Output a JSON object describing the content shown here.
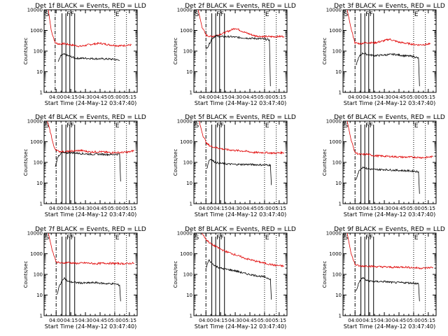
{
  "figure": {
    "y_tick_labels": [
      "1",
      "10",
      "100",
      "1000",
      "10000"
    ],
    "x_tick_labels": [
      "04:00",
      "04:15",
      "04:30",
      "04:45",
      "05:00",
      "05:15"
    ],
    "ylabel": "Counts/sec",
    "xlabel": "Start Time (24-May-12 03:47:40)"
  },
  "chart_data": [
    {
      "type": "line",
      "title": "Det 1f BLACK = Events, RED = LLD",
      "xlabel": "Start Time (24-May-12 03:47:40)",
      "ylabel": "Counts/sec",
      "y_scale": "log",
      "ylim": [
        1,
        10000
      ],
      "xlim": [
        "03:47:40",
        "05:23:00"
      ],
      "x_ticks": [
        "04:00",
        "04:15",
        "04:30",
        "04:45",
        "05:00",
        "05:15"
      ],
      "markers": [
        {
          "label": "S",
          "x": "03:48"
        },
        {
          "label": "F",
          "x": "04:10"
        },
        {
          "label": "F",
          "x": "04:14"
        },
        {
          "label": "E",
          "x": "05:00"
        }
      ],
      "dashdot_lines": [
        "03:59"
      ],
      "solid_lines": [
        "04:06",
        "04:10",
        "04:14",
        "04:19"
      ],
      "dotted_lines": [
        "05:00",
        "05:12"
      ],
      "series": [
        {
          "color": "#e00000",
          "x": [
            "03:52",
            "03:55",
            "03:59",
            "04:03",
            "04:08",
            "04:15",
            "04:25",
            "04:35",
            "04:45",
            "04:55",
            "05:05",
            "05:17"
          ],
          "values": [
            10000,
            1000,
            250,
            220,
            230,
            200,
            170,
            210,
            240,
            200,
            180,
            200
          ]
        },
        {
          "color": "#000000",
          "x": [
            "04:02",
            "04:05",
            "04:08",
            "04:12",
            "04:20",
            "04:30",
            "04:40",
            "04:50",
            "05:00",
            "05:05"
          ],
          "values": [
            30,
            60,
            70,
            60,
            45,
            45,
            43,
            42,
            40,
            35
          ]
        }
      ]
    },
    {
      "type": "line",
      "title": "Det 2f BLACK = Events, RED = LLD",
      "xlabel": "Start Time (24-May-12 03:47:40)",
      "ylabel": "Counts/sec",
      "y_scale": "log",
      "ylim": [
        1,
        10000
      ],
      "xlim": [
        "03:47:40",
        "05:23:00"
      ],
      "x_ticks": [
        "04:00",
        "04:15",
        "04:30",
        "04:45",
        "05:00",
        "05:15"
      ],
      "markers": [
        {
          "label": "S",
          "x": "03:48"
        },
        {
          "label": "F",
          "x": "04:10"
        },
        {
          "label": "F",
          "x": "04:14"
        },
        {
          "label": "E",
          "x": "05:00"
        }
      ],
      "dashdot_lines": [
        "04:00"
      ],
      "solid_lines": [
        "04:06",
        "04:10",
        "04:14",
        "04:19"
      ],
      "dotted_lines": [
        "05:00",
        "05:12"
      ],
      "series": [
        {
          "color": "#e00000",
          "x": [
            "03:52",
            "03:56",
            "04:00",
            "04:05",
            "04:12",
            "04:20",
            "04:30",
            "04:40",
            "04:50",
            "05:00",
            "05:10",
            "05:20"
          ],
          "values": [
            10000,
            1500,
            600,
            500,
            600,
            800,
            1300,
            800,
            550,
            500,
            500,
            520
          ]
        },
        {
          "color": "#000000",
          "x": [
            "04:00",
            "04:03",
            "04:06",
            "04:10",
            "04:15",
            "04:25",
            "04:35",
            "04:45",
            "04:55",
            "05:00",
            "05:05",
            "05:06"
          ],
          "values": [
            120,
            200,
            400,
            550,
            500,
            500,
            450,
            420,
            400,
            380,
            350,
            2
          ]
        }
      ]
    },
    {
      "type": "line",
      "title": "Det 3f BLACK = Events, RED = LLD",
      "xlabel": "Start Time (24-May-12 03:47:40)",
      "ylabel": "Counts/sec",
      "y_scale": "log",
      "ylim": [
        1,
        10000
      ],
      "xlim": [
        "03:47:40",
        "05:23:00"
      ],
      "x_ticks": [
        "04:00",
        "04:15",
        "04:30",
        "04:45",
        "05:00",
        "05:15"
      ],
      "markers": [
        {
          "label": "S",
          "x": "03:48"
        },
        {
          "label": "F",
          "x": "04:10"
        },
        {
          "label": "F",
          "x": "04:14"
        },
        {
          "label": "E",
          "x": "05:00"
        }
      ],
      "dashdot_lines": [
        "04:00"
      ],
      "solid_lines": [
        "04:06",
        "04:10",
        "04:14",
        "04:19"
      ],
      "dotted_lines": [
        "05:00",
        "05:12"
      ],
      "series": [
        {
          "color": "#e00000",
          "x": [
            "03:52",
            "03:56",
            "04:00",
            "04:05",
            "04:12",
            "04:20",
            "04:30",
            "04:35",
            "04:45",
            "04:55",
            "05:05",
            "05:17"
          ],
          "values": [
            10000,
            1200,
            250,
            230,
            260,
            250,
            320,
            380,
            270,
            230,
            200,
            220
          ]
        },
        {
          "color": "#000000",
          "x": [
            "04:01",
            "04:03",
            "04:05",
            "04:08",
            "04:12",
            "04:20",
            "04:30",
            "04:40",
            "04:50",
            "05:00",
            "05:05",
            "05:06"
          ],
          "values": [
            20,
            40,
            60,
            80,
            70,
            60,
            65,
            70,
            60,
            55,
            45,
            2
          ]
        }
      ]
    },
    {
      "type": "line",
      "title": "Det 4f BLACK = Events, RED = LLD",
      "xlabel": "Start Time (24-May-12 03:47:40)",
      "ylabel": "Counts/sec",
      "y_scale": "log",
      "ylim": [
        1,
        10000
      ],
      "xlim": [
        "03:47:40",
        "05:23:00"
      ],
      "x_ticks": [
        "04:00",
        "04:15",
        "04:30",
        "04:45",
        "05:00",
        "05:15"
      ],
      "markers": [
        {
          "label": "S",
          "x": "03:48"
        },
        {
          "label": "F",
          "x": "04:10"
        },
        {
          "label": "F",
          "x": "04:14"
        },
        {
          "label": "E",
          "x": "05:00"
        }
      ],
      "dashdot_lines": [
        "04:00"
      ],
      "solid_lines": [
        "04:06",
        "04:10",
        "04:14",
        "04:19"
      ],
      "dotted_lines": [
        "05:00",
        "05:12"
      ],
      "series": [
        {
          "color": "#e00000",
          "x": [
            "03:51",
            "03:55",
            "03:58",
            "04:02",
            "04:08",
            "04:15",
            "04:25",
            "04:35",
            "04:45",
            "04:55",
            "05:05",
            "05:15",
            "05:20"
          ],
          "values": [
            10000,
            2000,
            500,
            350,
            320,
            350,
            380,
            320,
            330,
            300,
            300,
            320,
            380
          ]
        },
        {
          "color": "#000000",
          "x": [
            "03:59",
            "04:02",
            "04:06",
            "04:10",
            "04:15",
            "04:25",
            "04:35",
            "04:45",
            "04:55",
            "05:05",
            "05:06"
          ],
          "values": [
            60,
            200,
            300,
            280,
            300,
            270,
            250,
            250,
            240,
            250,
            12
          ]
        }
      ]
    },
    {
      "type": "line",
      "title": "Det 5f BLACK = Events, RED = LLD",
      "xlabel": "Start Time (24-May-12 03:47:40)",
      "ylabel": "Counts/sec",
      "y_scale": "log",
      "ylim": [
        1,
        10000
      ],
      "xlim": [
        "03:47:40",
        "05:23:00"
      ],
      "x_ticks": [
        "04:00",
        "04:15",
        "04:30",
        "04:45",
        "05:00",
        "05:15"
      ],
      "markers": [
        {
          "label": "S",
          "x": "03:48"
        },
        {
          "label": "F",
          "x": "04:10"
        },
        {
          "label": "F",
          "x": "04:14"
        },
        {
          "label": "E",
          "x": "05:00"
        }
      ],
      "dashdot_lines": [
        "04:00"
      ],
      "solid_lines": [
        "04:06",
        "04:10",
        "04:14",
        "04:19"
      ],
      "dotted_lines": [
        "05:00",
        "05:12"
      ],
      "series": [
        {
          "color": "#e00000",
          "x": [
            "03:53",
            "03:57",
            "04:01",
            "04:05",
            "04:12",
            "04:20",
            "04:30",
            "04:40",
            "04:50",
            "05:00",
            "05:10",
            "05:20"
          ],
          "values": [
            10000,
            2000,
            800,
            600,
            500,
            420,
            380,
            350,
            300,
            300,
            280,
            300
          ]
        },
        {
          "color": "#000000",
          "x": [
            "04:01",
            "04:03",
            "04:05",
            "04:08",
            "04:12",
            "04:20",
            "04:30",
            "04:40",
            "04:50",
            "05:00",
            "05:06",
            "05:07"
          ],
          "values": [
            50,
            120,
            150,
            110,
            95,
            85,
            80,
            80,
            78,
            75,
            75,
            8
          ]
        }
      ]
    },
    {
      "type": "line",
      "title": "Det 6f BLACK = Events, RED = LLD",
      "xlabel": "Start Time (24-May-12 03:47:40)",
      "ylabel": "Counts/sec",
      "y_scale": "log",
      "ylim": [
        1,
        10000
      ],
      "xlim": [
        "03:47:40",
        "05:23:00"
      ],
      "x_ticks": [
        "04:00",
        "04:15",
        "04:30",
        "04:45",
        "05:00",
        "05:15"
      ],
      "markers": [
        {
          "label": "S",
          "x": "03:48"
        },
        {
          "label": "F",
          "x": "04:10"
        },
        {
          "label": "F",
          "x": "04:14"
        },
        {
          "label": "E",
          "x": "05:00"
        }
      ],
      "dashdot_lines": [
        "04:00"
      ],
      "solid_lines": [
        "04:06",
        "04:10",
        "04:14",
        "04:19"
      ],
      "dotted_lines": [
        "05:00",
        "05:12"
      ],
      "series": [
        {
          "color": "#e00000",
          "x": [
            "03:52",
            "03:56",
            "04:00",
            "04:05",
            "04:12",
            "04:20",
            "04:30",
            "04:40",
            "04:50",
            "05:00",
            "05:10",
            "05:20"
          ],
          "values": [
            10000,
            1200,
            300,
            240,
            250,
            210,
            200,
            190,
            180,
            180,
            170,
            190
          ]
        },
        {
          "color": "#000000",
          "x": [
            "04:01",
            "04:03",
            "04:05",
            "04:08",
            "04:12",
            "04:20",
            "04:30",
            "04:40",
            "04:50",
            "05:00",
            "05:05",
            "05:06"
          ],
          "values": [
            15,
            30,
            45,
            60,
            50,
            45,
            45,
            42,
            40,
            38,
            35,
            3
          ]
        }
      ]
    },
    {
      "type": "line",
      "title": "Det 7f BLACK = Events, RED = LLD",
      "xlabel": "Start Time (24-May-12 03:47:40)",
      "ylabel": "Counts/sec",
      "y_scale": "log",
      "ylim": [
        1,
        10000
      ],
      "xlim": [
        "03:47:40",
        "05:23:00"
      ],
      "x_ticks": [
        "04:00",
        "04:15",
        "04:30",
        "04:45",
        "05:00",
        "05:15"
      ],
      "markers": [
        {
          "label": "S",
          "x": "03:48"
        },
        {
          "label": "F",
          "x": "04:10"
        },
        {
          "label": "F",
          "x": "04:14"
        },
        {
          "label": "E",
          "x": "05:00"
        }
      ],
      "dashdot_lines": [
        "04:00"
      ],
      "solid_lines": [
        "04:06",
        "04:10",
        "04:14",
        "04:19"
      ],
      "dotted_lines": [
        "05:00",
        "05:12"
      ],
      "series": [
        {
          "color": "#e00000",
          "x": [
            "03:52",
            "03:56",
            "04:00",
            "04:05",
            "04:12",
            "04:20",
            "04:30",
            "04:40",
            "04:50",
            "05:00",
            "05:10",
            "05:20"
          ],
          "values": [
            10000,
            1500,
            400,
            350,
            380,
            340,
            360,
            330,
            350,
            340,
            330,
            350
          ]
        },
        {
          "color": "#000000",
          "x": [
            "04:01",
            "04:03",
            "04:05",
            "04:08",
            "04:12",
            "04:20",
            "04:30",
            "04:40",
            "04:50",
            "05:00",
            "05:05",
            "05:06"
          ],
          "values": [
            10,
            25,
            40,
            70,
            45,
            40,
            38,
            40,
            36,
            35,
            30,
            5
          ]
        }
      ]
    },
    {
      "type": "line",
      "title": "Det 8f BLACK = Events, RED = LLD",
      "xlabel": "Start Time (24-May-12 03:47:40)",
      "ylabel": "Counts/sec",
      "y_scale": "log",
      "ylim": [
        1,
        10000
      ],
      "xlim": [
        "03:47:40",
        "05:23:00"
      ],
      "x_ticks": [
        "04:00",
        "04:15",
        "04:30",
        "04:45",
        "05:00",
        "05:15"
      ],
      "markers": [
        {
          "label": "S",
          "x": "03:48"
        },
        {
          "label": "F",
          "x": "04:10"
        },
        {
          "label": "F",
          "x": "04:14"
        },
        {
          "label": "E",
          "x": "05:00"
        }
      ],
      "dashdot_lines": [
        "04:00"
      ],
      "solid_lines": [
        "04:06",
        "04:10",
        "04:14",
        "04:19"
      ],
      "dotted_lines": [
        "05:00",
        "05:12"
      ],
      "series": [
        {
          "color": "#e00000",
          "x": [
            "03:56",
            "04:00",
            "04:05",
            "04:12",
            "04:20",
            "04:30",
            "04:40",
            "04:50",
            "05:00",
            "05:10",
            "05:20"
          ],
          "values": [
            10000,
            5000,
            3000,
            2000,
            1300,
            900,
            600,
            450,
            350,
            280,
            250
          ]
        },
        {
          "color": "#000000",
          "x": [
            "04:00",
            "04:03",
            "04:06",
            "04:10",
            "04:15",
            "04:20",
            "04:30",
            "04:40",
            "04:50",
            "05:00",
            "05:06",
            "05:07"
          ],
          "values": [
            200,
            500,
            350,
            250,
            200,
            180,
            150,
            110,
            90,
            75,
            60,
            6
          ]
        }
      ]
    },
    {
      "type": "line",
      "title": "Det 9f BLACK = Events, RED = LLD",
      "xlabel": "Start Time (24-May-12 03:47:40)",
      "ylabel": "Counts/sec",
      "y_scale": "log",
      "ylim": [
        1,
        10000
      ],
      "xlim": [
        "03:47:40",
        "05:23:00"
      ],
      "x_ticks": [
        "04:00",
        "04:15",
        "04:30",
        "04:45",
        "05:00",
        "05:15"
      ],
      "markers": [
        {
          "label": "S",
          "x": "03:48"
        },
        {
          "label": "F",
          "x": "04:10"
        },
        {
          "label": "F",
          "x": "04:14"
        },
        {
          "label": "E",
          "x": "05:00"
        }
      ],
      "dashdot_lines": [
        "04:00"
      ],
      "solid_lines": [
        "04:06",
        "04:10",
        "04:14",
        "04:19"
      ],
      "dotted_lines": [
        "05:00",
        "05:12"
      ],
      "series": [
        {
          "color": "#e00000",
          "x": [
            "03:52",
            "03:56",
            "04:00",
            "04:05",
            "04:12",
            "04:20",
            "04:30",
            "04:40",
            "04:50",
            "05:00",
            "05:10",
            "05:20"
          ],
          "values": [
            10000,
            1000,
            300,
            250,
            260,
            240,
            230,
            220,
            230,
            210,
            200,
            220
          ]
        },
        {
          "color": "#000000",
          "x": [
            "04:01",
            "04:03",
            "04:05",
            "04:08",
            "04:12",
            "04:20",
            "04:30",
            "04:40",
            "04:50",
            "05:00",
            "05:05",
            "05:06"
          ],
          "values": [
            15,
            30,
            50,
            70,
            50,
            45,
            45,
            40,
            40,
            38,
            35,
            5
          ]
        }
      ]
    }
  ]
}
